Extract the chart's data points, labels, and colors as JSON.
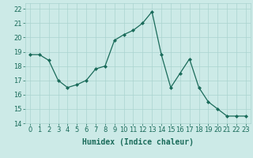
{
  "x": [
    0,
    1,
    2,
    3,
    4,
    5,
    6,
    7,
    8,
    9,
    10,
    11,
    12,
    13,
    14,
    15,
    16,
    17,
    18,
    19,
    20,
    21,
    22,
    23
  ],
  "y": [
    18.8,
    18.8,
    18.4,
    17.0,
    16.5,
    16.7,
    17.0,
    17.8,
    18.0,
    19.8,
    20.2,
    20.5,
    21.0,
    21.8,
    18.8,
    16.5,
    17.5,
    18.5,
    16.5,
    15.5,
    15.0,
    14.5,
    14.5,
    14.5
  ],
  "line_color": "#1a6b5a",
  "marker": "D",
  "marker_size": 2,
  "bg_color": "#cceae7",
  "grid_color": "#aad4d0",
  "xlabel": "Humidex (Indice chaleur)",
  "xlim": [
    -0.5,
    23.5
  ],
  "ylim": [
    14,
    22.4
  ],
  "xticks": [
    0,
    1,
    2,
    3,
    4,
    5,
    6,
    7,
    8,
    9,
    10,
    11,
    12,
    13,
    14,
    15,
    16,
    17,
    18,
    19,
    20,
    21,
    22,
    23
  ],
  "yticks": [
    14,
    15,
    16,
    17,
    18,
    19,
    20,
    21,
    22
  ],
  "tick_fontsize": 6,
  "xlabel_fontsize": 7
}
